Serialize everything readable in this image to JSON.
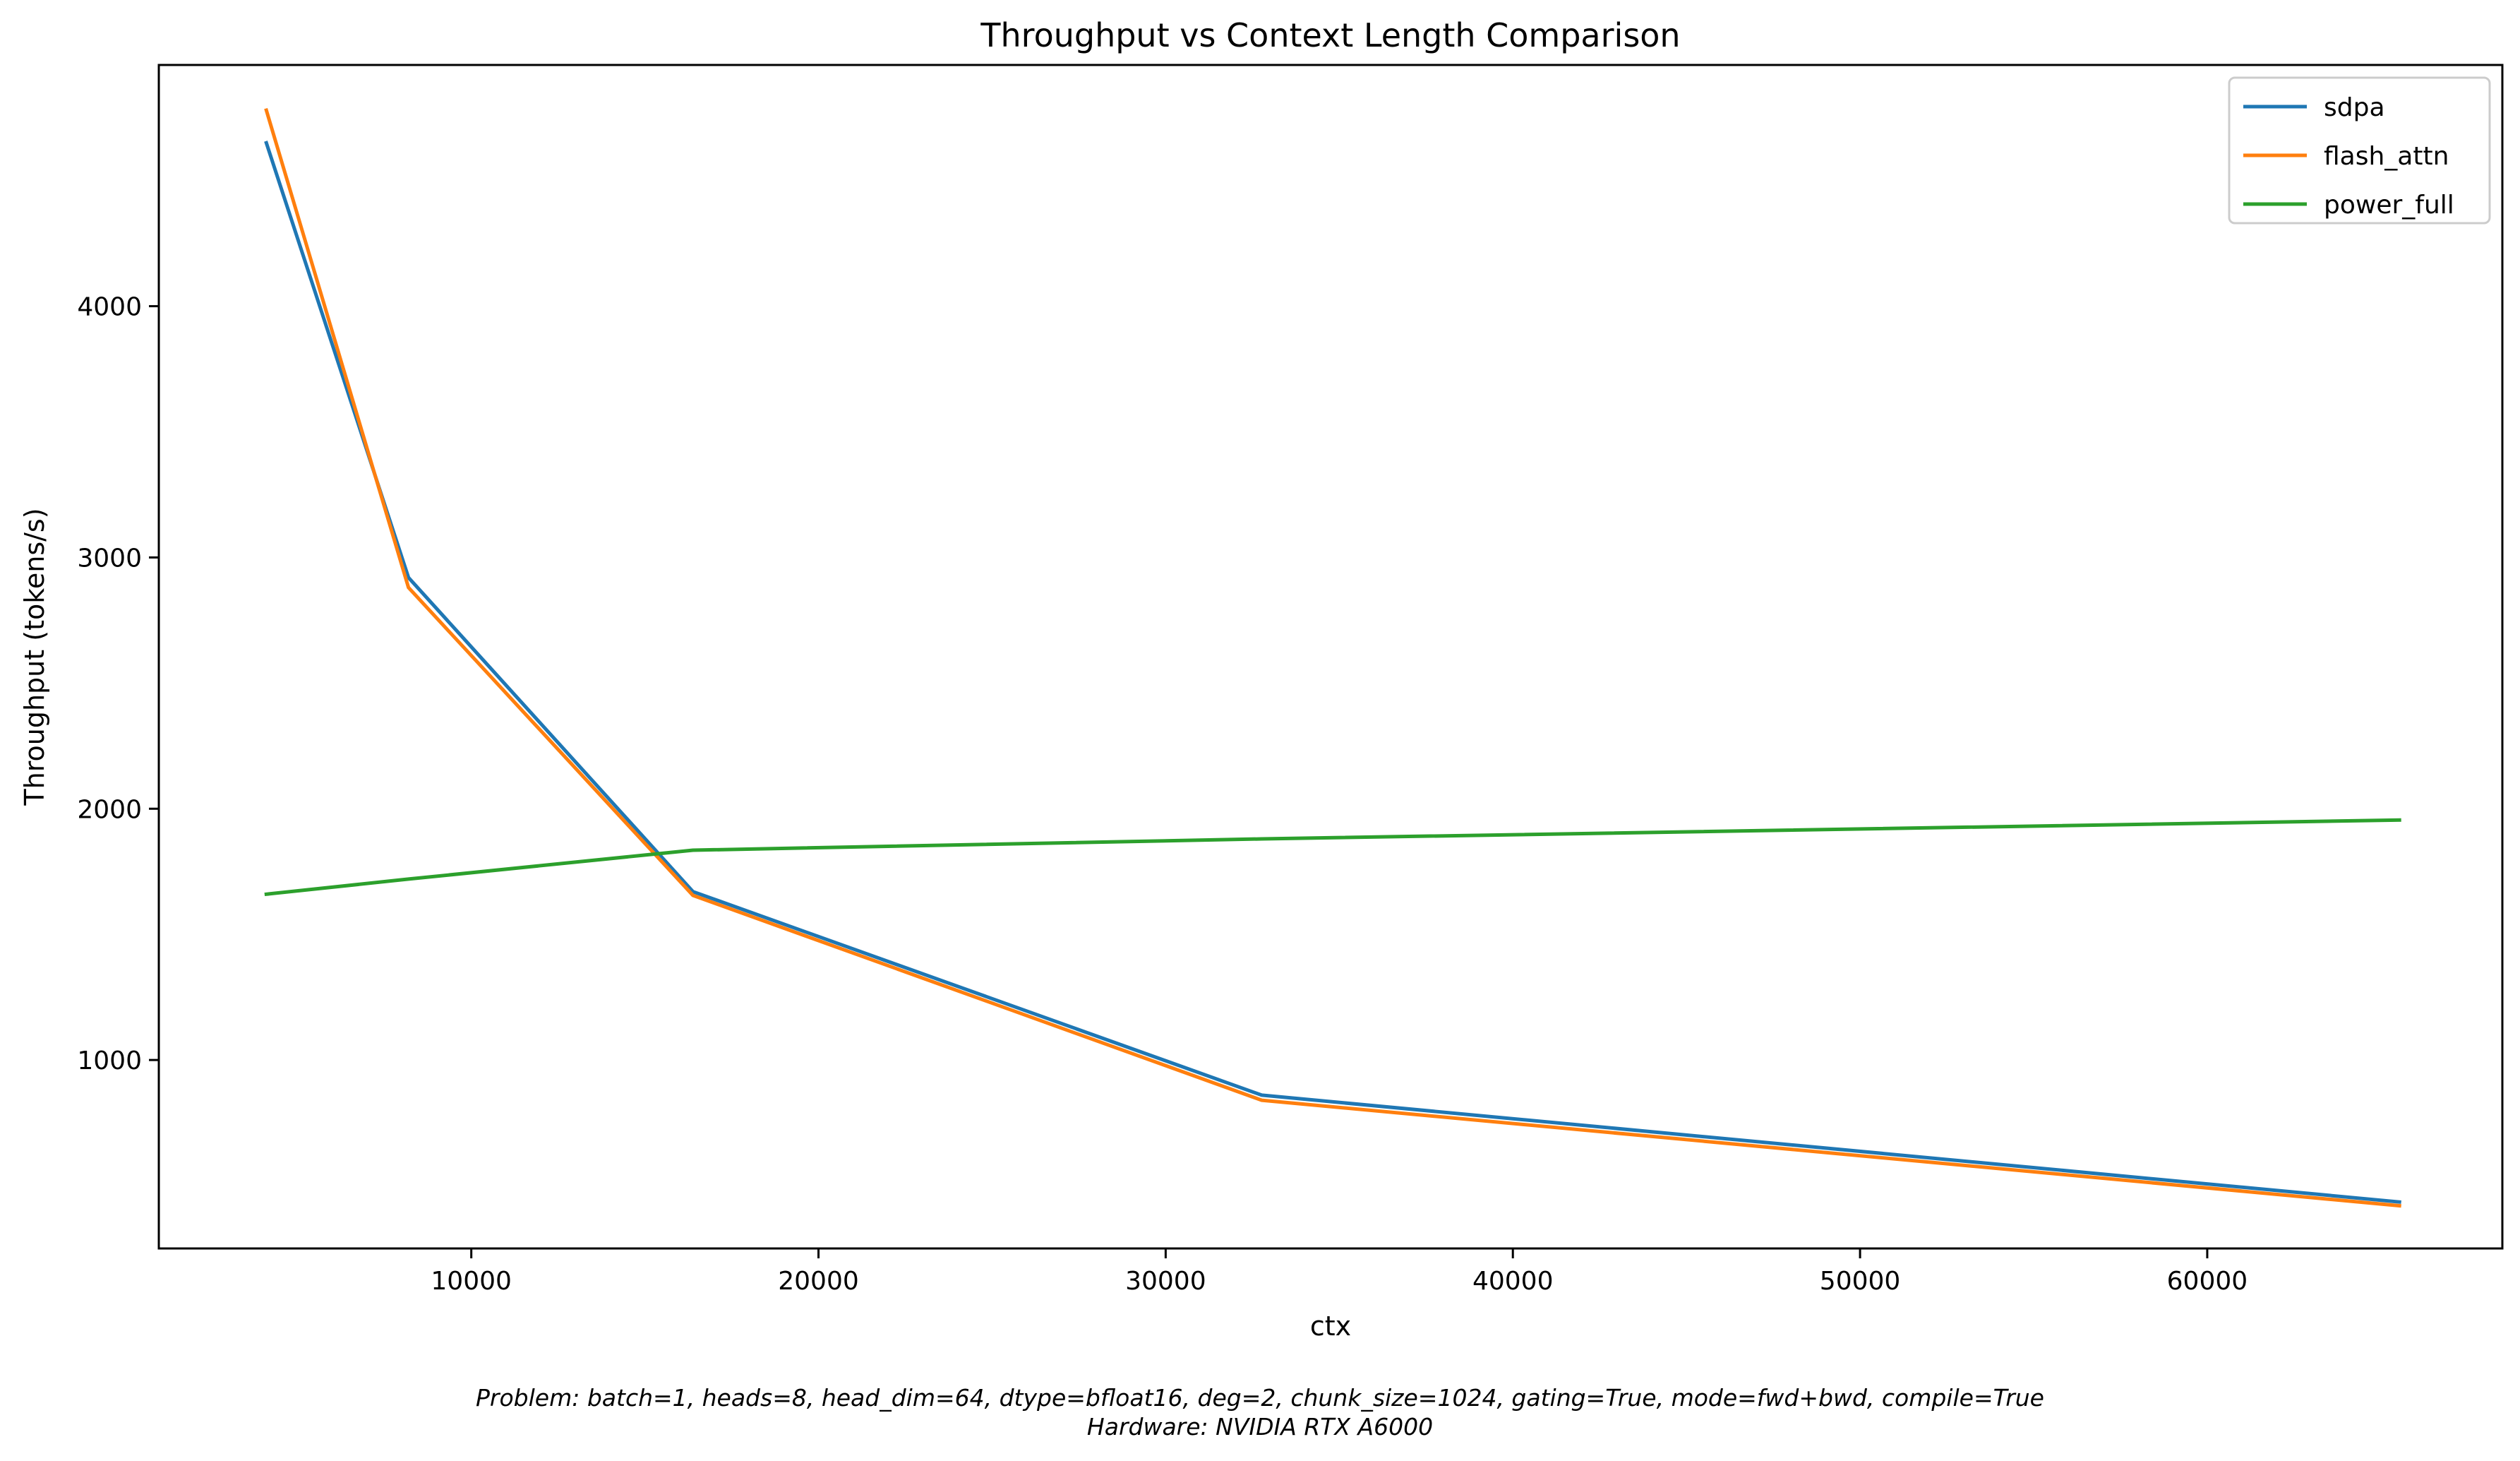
{
  "chart_data": {
    "type": "line",
    "title": "Throughput vs Context Length Comparison",
    "xlabel": "ctx",
    "ylabel": "Throughput (tokens/s)",
    "xlim": [
      1000,
      68500
    ],
    "ylim": [
      250,
      4960
    ],
    "xticks": [
      10000,
      20000,
      30000,
      40000,
      50000,
      60000
    ],
    "xtick_labels": [
      "10000",
      "20000",
      "30000",
      "40000",
      "50000",
      "60000"
    ],
    "yticks": [
      1000,
      2000,
      3000,
      4000
    ],
    "ytick_labels": [
      "1000",
      "2000",
      "3000",
      "4000"
    ],
    "grid": false,
    "legend_position": "top-right",
    "x": [
      4096,
      8192,
      16384,
      32768,
      65536
    ],
    "series": [
      {
        "name": "sdpa",
        "color": "#1f77b4",
        "values": [
          4650,
          2920,
          1670,
          860,
          435
        ]
      },
      {
        "name": "flash_attn",
        "color": "#ff7f0e",
        "values": [
          4780,
          2880,
          1655,
          840,
          420
        ]
      },
      {
        "name": "power_full",
        "color": "#2ca02c",
        "values": [
          1660,
          1720,
          1835,
          1880,
          1955
        ]
      }
    ]
  },
  "caption": {
    "line1": "Problem: batch=1, heads=8, head_dim=64, dtype=bfloat16, deg=2, chunk_size=1024, gating=True, mode=fwd+bwd, compile=True",
    "line2": "Hardware: NVIDIA RTX A6000"
  }
}
